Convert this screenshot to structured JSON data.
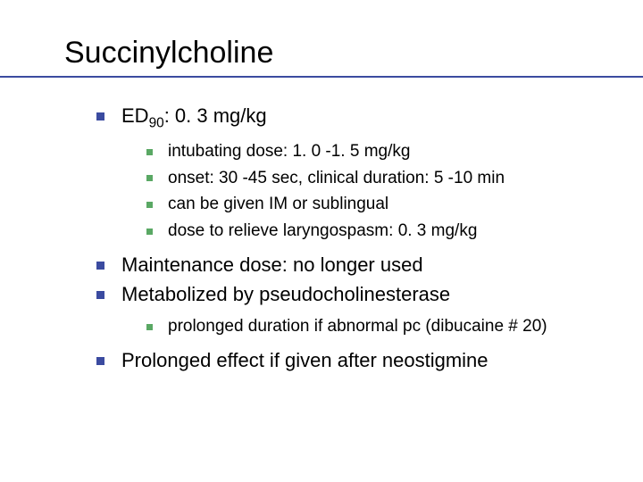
{
  "colors": {
    "bullet1": "#3b4ba0",
    "bullet2": "#5aa864",
    "title_underline": "#3b4ba0",
    "text": "#000000",
    "background": "#ffffff"
  },
  "title": "Succinylcholine",
  "bullets": [
    {
      "text_prefix": "ED",
      "text_sub": "90",
      "text_suffix": ": 0. 3 mg/kg",
      "children": [
        {
          "text": "intubating dose: 1. 0 -1. 5 mg/kg"
        },
        {
          "text": "onset: 30 -45 sec, clinical duration: 5 -10 min"
        },
        {
          "text": "can be given IM or sublingual"
        },
        {
          "text": "dose to relieve laryngospasm: 0. 3 mg/kg"
        }
      ]
    },
    {
      "text": "Maintenance dose: no longer used"
    },
    {
      "text": "Metabolized by pseudocholinesterase",
      "children": [
        {
          "text": "prolonged duration if abnormal pc (dibucaine # 20)"
        }
      ]
    },
    {
      "text": "Prolonged effect if given after neostigmine"
    }
  ]
}
